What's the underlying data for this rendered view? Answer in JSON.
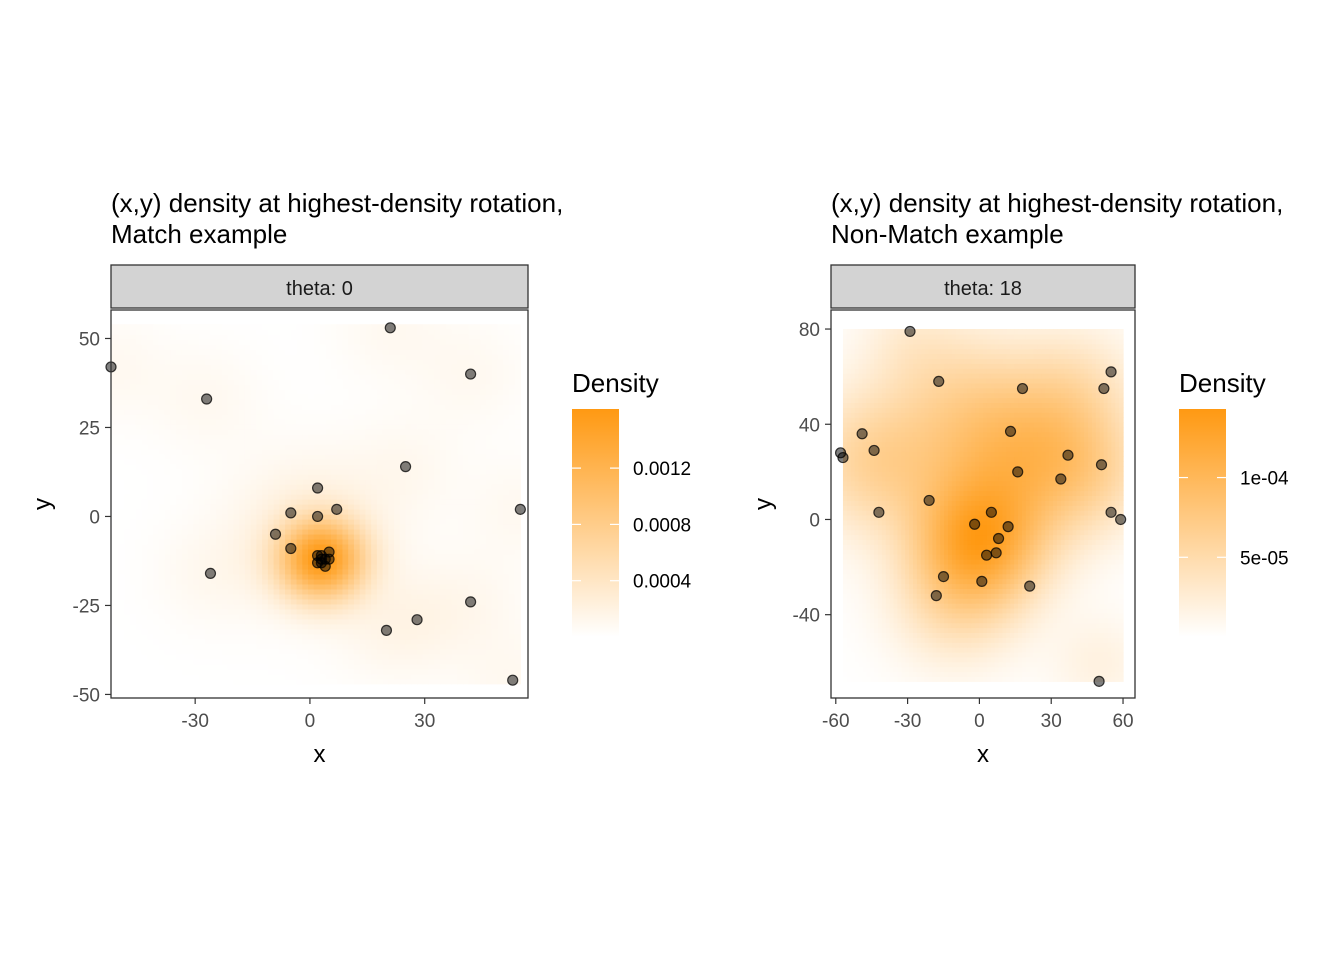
{
  "chart_data": [
    {
      "type": "heatmap",
      "overlay": "scatter",
      "title_lines": [
        "(x,y) density at highest-density rotation,",
        "Match example"
      ],
      "facet_label": "theta: 0",
      "xlabel": "x",
      "ylabel": "y",
      "xlim": [
        -52,
        57
      ],
      "ylim": [
        -51,
        58
      ],
      "x_ticks": [
        -30,
        0,
        30
      ],
      "x_tick_labels": [
        "-30",
        "0",
        "30"
      ],
      "y_ticks": [
        -50,
        -25,
        0,
        25,
        50
      ],
      "y_tick_labels": [
        "-50",
        "-25",
        "0",
        "25",
        "50"
      ],
      "density_extent": {
        "x": [
          -53,
          55
        ],
        "y": [
          -47,
          54
        ]
      },
      "legend": {
        "title": "Density",
        "placement": "right",
        "min": 0,
        "max": 0.00162,
        "breaks": [
          0.0004,
          0.0008,
          0.0012
        ],
        "break_labels": [
          "0.0004",
          "0.0008",
          "0.0012"
        ]
      },
      "gradient": {
        "low": "#ffffff",
        "high": "#ff9912"
      },
      "points": [
        {
          "x": -52,
          "y": 42
        },
        {
          "x": -27,
          "y": 33
        },
        {
          "x": 21,
          "y": 53
        },
        {
          "x": 42,
          "y": 40
        },
        {
          "x": 25,
          "y": 14
        },
        {
          "x": 55,
          "y": 2
        },
        {
          "x": 2,
          "y": 8
        },
        {
          "x": -5,
          "y": 1
        },
        {
          "x": 2,
          "y": 0
        },
        {
          "x": 7,
          "y": 2
        },
        {
          "x": -9,
          "y": -5
        },
        {
          "x": -5,
          "y": -9
        },
        {
          "x": -26,
          "y": -16
        },
        {
          "x": 2,
          "y": -11
        },
        {
          "x": 3,
          "y": -12
        },
        {
          "x": 2,
          "y": -13
        },
        {
          "x": 3,
          "y": -11
        },
        {
          "x": 4,
          "y": -12
        },
        {
          "x": 5,
          "y": -10
        },
        {
          "x": 5,
          "y": -12
        },
        {
          "x": 4,
          "y": -14
        },
        {
          "x": 3,
          "y": -13
        },
        {
          "x": 42,
          "y": -24
        },
        {
          "x": 20,
          "y": -32
        },
        {
          "x": 28,
          "y": -29
        },
        {
          "x": 53,
          "y": -46
        }
      ],
      "density_centers": [
        {
          "x": 3,
          "y": -12,
          "w": 1.0,
          "s": 7.5
        },
        {
          "x": 0,
          "y": -4,
          "w": 0.12,
          "s": 14
        },
        {
          "x": -52,
          "y": 42,
          "w": 0.04,
          "s": 10
        },
        {
          "x": -27,
          "y": 33,
          "w": 0.04,
          "s": 10
        },
        {
          "x": 21,
          "y": 53,
          "w": 0.04,
          "s": 10
        },
        {
          "x": 42,
          "y": 40,
          "w": 0.04,
          "s": 10
        },
        {
          "x": 25,
          "y": 14,
          "w": 0.04,
          "s": 10
        },
        {
          "x": 55,
          "y": 2,
          "w": 0.04,
          "s": 10
        },
        {
          "x": -26,
          "y": -16,
          "w": 0.04,
          "s": 10
        },
        {
          "x": 42,
          "y": -24,
          "w": 0.04,
          "s": 10
        },
        {
          "x": 20,
          "y": -32,
          "w": 0.04,
          "s": 10
        },
        {
          "x": 28,
          "y": -29,
          "w": 0.04,
          "s": 10
        },
        {
          "x": 53,
          "y": -46,
          "w": 0.04,
          "s": 10
        }
      ]
    },
    {
      "type": "heatmap",
      "overlay": "scatter",
      "title_lines": [
        "(x,y) density at highest-density rotation,",
        "Non-Match example"
      ],
      "facet_label": "theta: 18",
      "xlabel": "x",
      "ylabel": "y",
      "xlim": [
        -62,
        65
      ],
      "ylim": [
        -75,
        88
      ],
      "x_ticks": [
        -60,
        -30,
        0,
        30,
        60
      ],
      "x_tick_labels": [
        "-60",
        "-30",
        "0",
        "30",
        "60"
      ],
      "y_ticks": [
        -40,
        0,
        40,
        80
      ],
      "y_tick_labels": [
        "-40",
        "0",
        "40",
        "80"
      ],
      "density_extent": {
        "x": [
          -57,
          60
        ],
        "y": [
          -68,
          80
        ]
      },
      "legend": {
        "title": "Density",
        "placement": "right",
        "min": 0,
        "max": 0.000143,
        "breaks": [
          5e-05,
          0.0001
        ],
        "break_labels": [
          "5e-05",
          "1e-04"
        ]
      },
      "gradient": {
        "low": "#ffffff",
        "high": "#ff9912"
      },
      "points": [
        {
          "x": -29,
          "y": 79
        },
        {
          "x": -17,
          "y": 58
        },
        {
          "x": 18,
          "y": 55
        },
        {
          "x": 52,
          "y": 55
        },
        {
          "x": 55,
          "y": 62
        },
        {
          "x": -49,
          "y": 36
        },
        {
          "x": -58,
          "y": 28
        },
        {
          "x": -57,
          "y": 26
        },
        {
          "x": -44,
          "y": 29
        },
        {
          "x": 13,
          "y": 37
        },
        {
          "x": 37,
          "y": 27
        },
        {
          "x": 16,
          "y": 20
        },
        {
          "x": 34,
          "y": 17
        },
        {
          "x": 51,
          "y": 23
        },
        {
          "x": -21,
          "y": 8
        },
        {
          "x": -42,
          "y": 3
        },
        {
          "x": 5,
          "y": 3
        },
        {
          "x": 55,
          "y": 3
        },
        {
          "x": 59,
          "y": 0
        },
        {
          "x": -2,
          "y": -2
        },
        {
          "x": 12,
          "y": -3
        },
        {
          "x": 8,
          "y": -8
        },
        {
          "x": 3,
          "y": -15
        },
        {
          "x": 7,
          "y": -14
        },
        {
          "x": -15,
          "y": -24
        },
        {
          "x": 1,
          "y": -26
        },
        {
          "x": 21,
          "y": -28
        },
        {
          "x": -18,
          "y": -32
        },
        {
          "x": 50,
          "y": -68
        }
      ],
      "density_centers": [
        {
          "x": 0,
          "y": -10,
          "w": 1.0,
          "s": 18
        },
        {
          "x": -45,
          "y": 25,
          "w": 0.45,
          "s": 20
        },
        {
          "x": 20,
          "y": 30,
          "w": 0.5,
          "s": 22
        },
        {
          "x": 45,
          "y": 20,
          "w": 0.35,
          "s": 18
        },
        {
          "x": -10,
          "y": 55,
          "w": 0.25,
          "s": 20
        },
        {
          "x": 40,
          "y": 55,
          "w": 0.25,
          "s": 18
        },
        {
          "x": 0,
          "y": 20,
          "w": 0.35,
          "s": 25
        },
        {
          "x": -10,
          "y": -35,
          "w": 0.3,
          "s": 18
        },
        {
          "x": 50,
          "y": -60,
          "w": 0.12,
          "s": 14
        },
        {
          "x": -30,
          "y": 75,
          "w": 0.12,
          "s": 14
        }
      ]
    }
  ]
}
